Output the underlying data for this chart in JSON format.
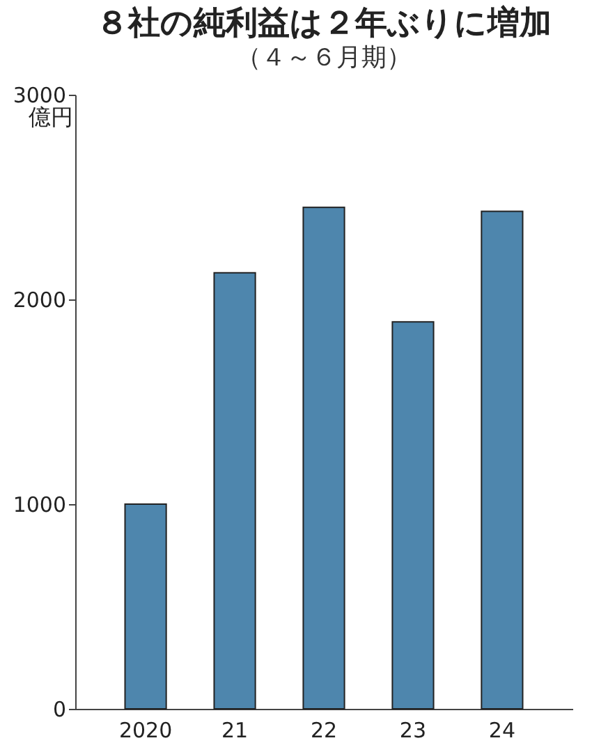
{
  "chart_data": {
    "type": "bar",
    "title": "８社の純利益は２年ぶりに増加",
    "subtitle": "（４～６月期）",
    "ylabel": "億円",
    "categories": [
      "2020",
      "21",
      "22",
      "23",
      "24"
    ],
    "values": [
      1000,
      2130,
      2450,
      1890,
      2430
    ],
    "color": "#4e86ad",
    "ylim": [
      0,
      3000
    ],
    "yticks": [
      0,
      1000,
      2000,
      3000
    ]
  }
}
